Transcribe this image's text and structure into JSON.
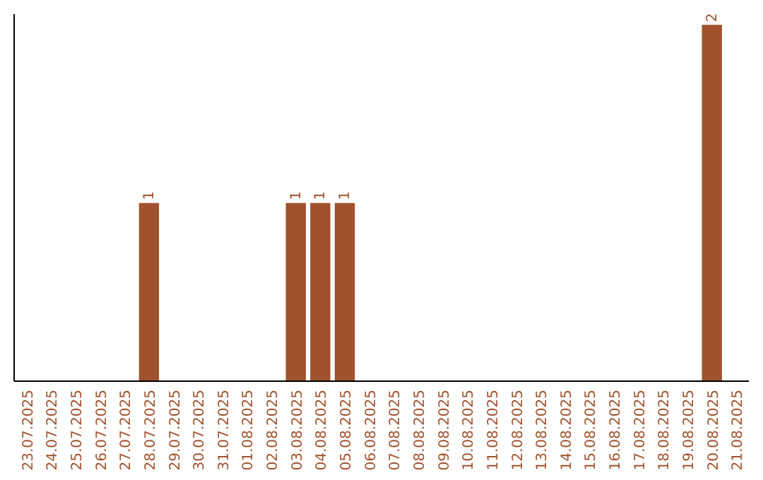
{
  "chart_data": {
    "type": "bar",
    "categories": [
      "23.07.2025",
      "24.07.2025",
      "25.07.2025",
      "26.07.2025",
      "27.07.2025",
      "28.07.2025",
      "29.07.2025",
      "30.07.2025",
      "31.07.2025",
      "01.08.2025",
      "02.08.2025",
      "03.08.2025",
      "04.08.2025",
      "05.08.2025",
      "06.08.2025",
      "07.08.2025",
      "08.08.2025",
      "09.08.2025",
      "10.08.2025",
      "11.08.2025",
      "12.08.2025",
      "13.08.2025",
      "14.08.2025",
      "15.08.2025",
      "16.08.2025",
      "17.08.2025",
      "18.08.2025",
      "19.08.2025",
      "20.08.2025",
      "21.08.2025"
    ],
    "values": [
      0,
      0,
      0,
      0,
      0,
      1,
      0,
      0,
      0,
      0,
      0,
      1,
      1,
      1,
      0,
      0,
      0,
      0,
      0,
      0,
      0,
      0,
      0,
      0,
      0,
      0,
      0,
      0,
      2,
      0
    ],
    "value_labels": [
      null,
      null,
      null,
      null,
      null,
      "1",
      null,
      null,
      null,
      null,
      null,
      "1",
      "1",
      "1",
      null,
      null,
      null,
      null,
      null,
      null,
      null,
      null,
      null,
      null,
      null,
      null,
      null,
      null,
      "2",
      null
    ],
    "color": "#a0522d",
    "tick_labels": "x"
  }
}
